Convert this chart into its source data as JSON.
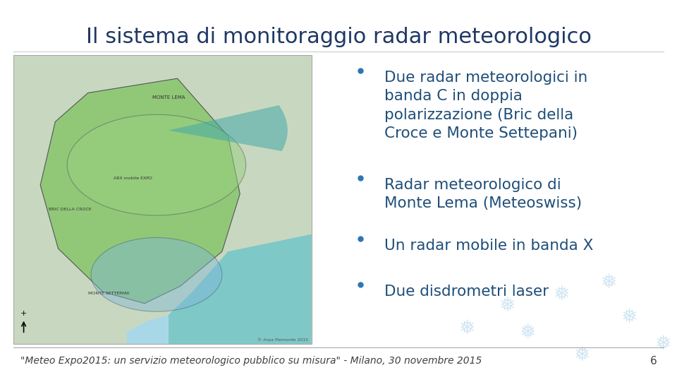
{
  "title": "Il sistema di monitoraggio radar meteorologico",
  "title_color": "#1F3864",
  "title_fontsize": 22,
  "background_color": "#FFFFFF",
  "bullet_points": [
    "Due radar meteorologici in\nbanda C in doppia\npolarizzazione (Bric della\nCroce e Monte Settepani)",
    "Radar meteorologico di\nMonte Lema (Meteoswiss)",
    "Un radar mobile in banda X",
    "Due disdrometri laser"
  ],
  "bullet_color": "#1F4E79",
  "bullet_fontsize": 15.5,
  "bullet_dot_color": "#2E75B6",
  "footer_text": "\"Meteo Expo2015: un servizio meteorologico pubblico su misura\" - Milano, 30 novembre 2015",
  "footer_color": "#404040",
  "footer_fontsize": 10,
  "page_number": "6",
  "footer_line_color": "#AAAAAA",
  "map_placeholder_color": "#D0E8D0",
  "snowflake_color": "#B0D8E8"
}
